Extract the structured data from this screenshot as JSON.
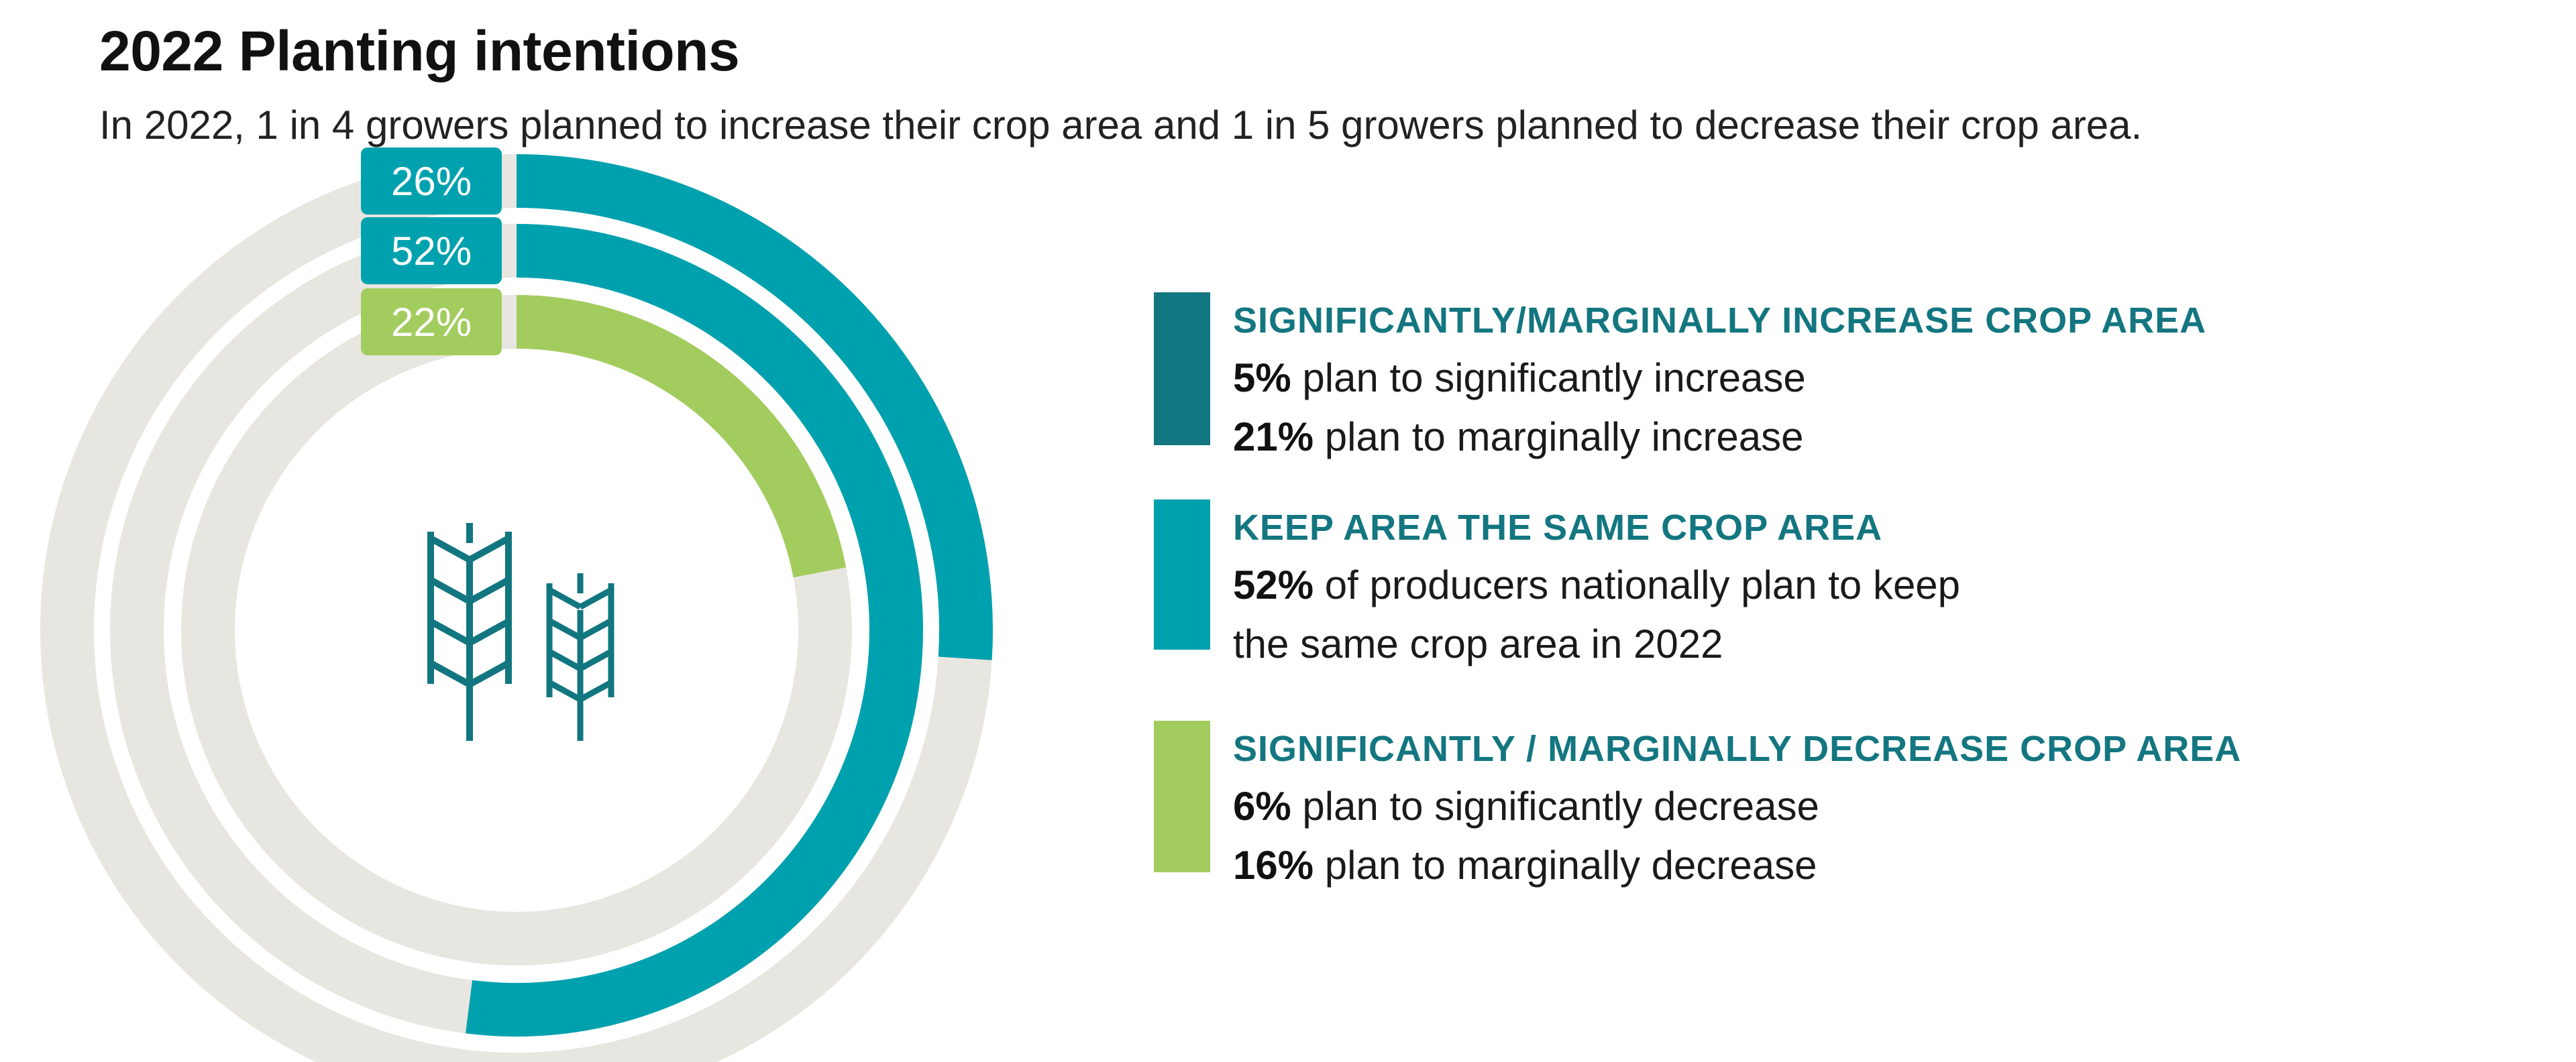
{
  "title": "2022 Planting intentions",
  "subtitle": "In 2022, 1 in 4 growers planned to increase their crop area and 1 in 5 growers planned to decrease their crop area.",
  "colors": {
    "increase": "#127680",
    "same": "#00A1AE",
    "decrease": "#A3CC5E",
    "track": "#E8E6E1",
    "label_text": "#FFFFFF",
    "heading": "#137680"
  },
  "icon": "wheat-icon",
  "chart_data": {
    "type": "radial-bar",
    "unit": "%",
    "max": 100,
    "series": [
      {
        "label": "26%",
        "value": 26,
        "color": "#00A1AE"
      },
      {
        "label": "52%",
        "value": 52,
        "color": "#00A1AE"
      },
      {
        "label": "22%",
        "value": 22,
        "color": "#A3CC5E"
      }
    ]
  },
  "legend": [
    {
      "heading": "SIGNIFICANTLY/MARGINALLY INCREASE CROP AREA",
      "color": "#127680",
      "lines": [
        {
          "bold": "5%",
          "text": " plan to significantly increase"
        },
        {
          "bold": "21%",
          "text": " plan to marginally increase"
        }
      ]
    },
    {
      "heading": "KEEP AREA THE SAME CROP AREA",
      "color": "#00A1AE",
      "lines": [
        {
          "bold": "52%",
          "text": " of producers nationally plan to keep"
        },
        {
          "bold": "",
          "text": "the same crop area in 2022"
        }
      ]
    },
    {
      "heading": "SIGNIFICANTLY / MARGINALLY DECREASE CROP AREA",
      "color": "#A3CC5E",
      "lines": [
        {
          "bold": "6%",
          "text": " plan to significantly decrease"
        },
        {
          "bold": "16%",
          "text": " plan to marginally decrease"
        }
      ]
    }
  ]
}
